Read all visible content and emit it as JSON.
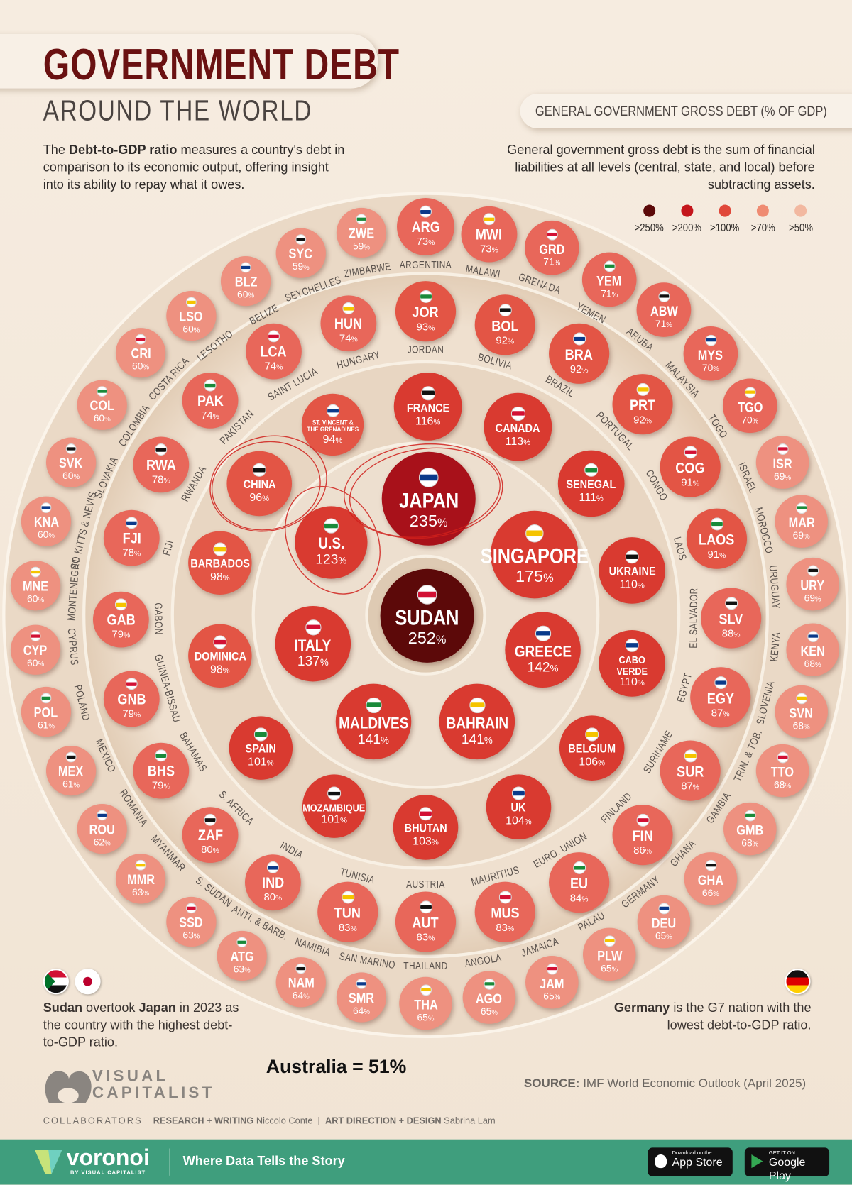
{
  "header": {
    "title": "GOVERNMENT DEBT",
    "subtitle": "AROUND THE WORLD",
    "desc_bold": "Debt-to-GDP ratio",
    "desc_pre": "The ",
    "desc_post": " measures a country's debt in comparison to its economic output, offering insight into its ability to repay what it owes.",
    "metric_label": "GENERAL GOVERNMENT GROSS DEBT (% OF GDP)",
    "metric_desc": "General government gross debt is the sum of financial liabilities at all levels (central, state, and local) before subtracting assets."
  },
  "legend": [
    {
      "label": ">250%",
      "color": "#5c0909"
    },
    {
      "label": ">200%",
      "color": "#c4161c"
    },
    {
      "label": ">100%",
      "color": "#e0483a"
    },
    {
      "label": ">70%",
      "color": "#ef8b72"
    },
    {
      "label": ">50%",
      "color": "#f2b8a0"
    }
  ],
  "chart_data": {
    "type": "bubble-rings",
    "title": "GOVERNMENT DEBT AROUND THE WORLD",
    "unit": "% of GDP",
    "bubbles": [
      {
        "label": "SUDAN",
        "value": 252
      },
      {
        "label": "JAPAN",
        "value": 235
      },
      {
        "label": "U.S.",
        "value": 123
      },
      {
        "label": "SINGAPORE",
        "value": 175
      },
      {
        "label": "CHINA",
        "value": 96
      },
      {
        "label": "ITALY",
        "value": 137
      },
      {
        "label": "GREECE",
        "value": 142
      },
      {
        "label": "MALDIVES",
        "value": 141
      },
      {
        "label": "BAHRAIN",
        "value": 141
      },
      {
        "label": "FRANCE",
        "value": 116
      },
      {
        "label": "CANADA",
        "value": 113
      },
      {
        "label": "ST. VINCENT &\nTHE GRENADINES",
        "value": 94
      },
      {
        "label": "SENEGAL",
        "value": 111
      },
      {
        "label": "BARBADOS",
        "value": 98
      },
      {
        "label": "UKRAINE",
        "value": 110
      },
      {
        "label": "DOMINICA",
        "value": 98
      },
      {
        "label": "CABO VERDE",
        "value": 110
      },
      {
        "label": "SPAIN",
        "value": 101
      },
      {
        "label": "BELGIUM",
        "value": 106
      },
      {
        "label": "MOZAMBIQUE",
        "value": 101
      },
      {
        "label": "BHUTAN",
        "value": 103
      },
      {
        "label": "UK",
        "value": 104
      },
      {
        "label": "JOR",
        "name": "JORDAN",
        "value": 93
      },
      {
        "label": "HUN",
        "name": "HUNGARY",
        "value": 74
      },
      {
        "label": "BOL",
        "name": "BOLIVIA",
        "value": 92
      },
      {
        "label": "LCA",
        "name": "SAINT LUCIA",
        "value": 74
      },
      {
        "label": "BRA",
        "name": "BRAZIL",
        "value": 92
      },
      {
        "label": "PAK",
        "name": "PAKISTAN",
        "value": 74
      },
      {
        "label": "PRT",
        "name": "PORTUGAL",
        "value": 92
      },
      {
        "label": "RWA",
        "name": "RWANDA",
        "value": 78
      },
      {
        "label": "COG",
        "name": "CONGO",
        "value": 91
      },
      {
        "label": "FJI",
        "name": "FIJI",
        "value": 78
      },
      {
        "label": "LAOS",
        "name": "LAOS",
        "value": 91
      },
      {
        "label": "GAB",
        "name": "GABON",
        "value": 79
      },
      {
        "label": "SLV",
        "name": "EL SALVADOR",
        "value": 88
      },
      {
        "label": "GNB",
        "name": "GUINEA-BISSAU",
        "value": 79
      },
      {
        "label": "EGY",
        "name": "EGYPT",
        "value": 87
      },
      {
        "label": "BHS",
        "name": "BAHAMAS",
        "value": 79
      },
      {
        "label": "SUR",
        "name": "SURINAME",
        "value": 87
      },
      {
        "label": "ZAF",
        "name": "S. AFRICA",
        "value": 80
      },
      {
        "label": "FIN",
        "name": "FINLAND",
        "value": 86
      },
      {
        "label": "IND",
        "name": "INDIA",
        "value": 80
      },
      {
        "label": "EU",
        "name": "EURO. UNION",
        "value": 84
      },
      {
        "label": "TUN",
        "name": "TUNISIA",
        "value": 83
      },
      {
        "label": "AUT",
        "name": "AUSTRIA",
        "value": 83
      },
      {
        "label": "MUS",
        "name": "MAURITIUS",
        "value": 83
      },
      {
        "label": "ARG",
        "name": "ARGENTINA",
        "value": 73
      },
      {
        "label": "ZWE",
        "name": "ZIMBABWE",
        "value": 59
      },
      {
        "label": "MWI",
        "name": "MALAWI",
        "value": 73
      },
      {
        "label": "SYC",
        "name": "SEYCHELLES",
        "value": 59
      },
      {
        "label": "GRD",
        "name": "GRENADA",
        "value": 71
      },
      {
        "label": "BLZ",
        "name": "BELIZE",
        "value": 60
      },
      {
        "label": "YEM",
        "name": "YEMEN",
        "value": 71
      },
      {
        "label": "LSO",
        "name": "LESOTHO",
        "value": 60
      },
      {
        "label": "ABW",
        "name": "ARUBA",
        "value": 71
      },
      {
        "label": "CRI",
        "name": "COSTA RICA",
        "value": 60
      },
      {
        "label": "MYS",
        "name": "MALAYSIA",
        "value": 70
      },
      {
        "label": "COL",
        "name": "COLOMBIA",
        "value": 60
      },
      {
        "label": "TGO",
        "name": "TOGO",
        "value": 70
      },
      {
        "label": "SVK",
        "name": "SLOVAKIA",
        "value": 60
      },
      {
        "label": "ISR",
        "name": "ISRAEL",
        "value": 69
      },
      {
        "label": "KNA",
        "name": "ST. KITTS & NEVIS",
        "value": 60
      },
      {
        "label": "MAR",
        "name": "MOROCCO",
        "value": 69
      },
      {
        "label": "MNE",
        "name": "MONTENEGRO",
        "value": 60
      },
      {
        "label": "URY",
        "name": "URUGUAY",
        "value": 69
      },
      {
        "label": "CYP",
        "name": "CYPRUS",
        "value": 60
      },
      {
        "label": "KEN",
        "name": "KENYA",
        "value": 68
      },
      {
        "label": "POL",
        "name": "POLAND",
        "value": 61
      },
      {
        "label": "SVN",
        "name": "SLOVENIA",
        "value": 68
      },
      {
        "label": "MEX",
        "name": "MEXICO",
        "value": 61
      },
      {
        "label": "TTO",
        "name": "TRIN. & TOB.",
        "value": 68
      },
      {
        "label": "ROU",
        "name": "ROMANIA",
        "value": 62
      },
      {
        "label": "GMB",
        "name": "GAMBIA",
        "value": 68
      },
      {
        "label": "MMR",
        "name": "MYANMAR",
        "value": 63
      },
      {
        "label": "GHA",
        "name": "GHANA",
        "value": 66
      },
      {
        "label": "SSD",
        "name": "S. SUDAN",
        "value": 63
      },
      {
        "label": "DEU",
        "name": "GERMANY",
        "value": 65
      },
      {
        "label": "ATG",
        "name": "ANTI. & BARB.",
        "value": 63
      },
      {
        "label": "PLW",
        "name": "PALAU",
        "value": 65
      },
      {
        "label": "NAM",
        "name": "NAMIBIA",
        "value": 64
      },
      {
        "label": "JAM",
        "name": "JAMAICA",
        "value": 65
      },
      {
        "label": "SMR",
        "name": "SAN MARINO",
        "value": 64
      },
      {
        "label": "AGO",
        "name": "ANGOLA",
        "value": 65
      },
      {
        "label": "THA",
        "name": "THAILAND",
        "value": 65
      }
    ]
  },
  "notes": {
    "left_bold1": "Sudan",
    "left_mid": " overtook ",
    "left_bold2": "Japan",
    "left_post": " in 2023 as the country with the highest debt-to-GDP ratio.",
    "right_bold": "Germany",
    "right_post": " is the G7 nation with the lowest debt-to-GDP ratio.",
    "australia": "Australia = 51%"
  },
  "branding": {
    "logo_line1": "VISUAL",
    "logo_line2": "CAPITALIST",
    "source_label": "SOURCE:",
    "source": " IMF World Economic Outlook (April 2025)",
    "collab_label": "COLLABORATORS",
    "research_label": "RESEARCH + WRITING",
    "research": "Niccolo Conte",
    "design_label": "ART DIRECTION + DESIGN",
    "design": "Sabrina Lam"
  },
  "footer": {
    "brand": "voronoi",
    "brand_sub": "BY VISUAL CAPITALIST",
    "tagline": "Where Data Tells the Story",
    "appstore_small": "Download on the",
    "appstore": "App Store",
    "gplay_small": "GET IT ON",
    "gplay": "Google Play"
  }
}
